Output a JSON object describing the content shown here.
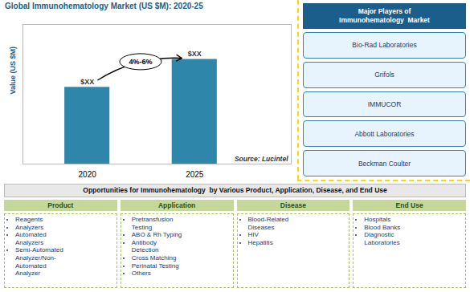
{
  "chart_data": {
    "type": "bar",
    "title": "Global Immunohematology Market (US $M): 2020-25",
    "categories": [
      "2020",
      "2025"
    ],
    "values": [
      55,
      75
    ],
    "value_labels": [
      "$XX",
      "$XX"
    ],
    "data_labels": true,
    "color": "#2E86AB",
    "ylabel": "Value (US $M)",
    "ylim": [
      0,
      100
    ],
    "yticks": [],
    "tick_labels": "x",
    "annotations": [
      "4%-6%",
      "Source: Lucintel"
    ],
    "major_players": {
      "title": "Major Players of\nImmunohematology  Market",
      "items": [
        "Bio-Rad Laboratories",
        "Grifols",
        "IMMUCOR",
        "Abbott Laboratories",
        "Beckman Coulter"
      ]
    },
    "opportunities": {
      "title": "Opportunities for Immunohematology  by Various Product, Application, Disease, and End Use",
      "columns": [
        {
          "name": "Product",
          "items": [
            "Reagents",
            "Analyzers",
            "Automated\nAnalyzers",
            "Semi-Automated\nAnalyzer/Non-\nAutomated\nAnalyzer"
          ]
        },
        {
          "name": "Application",
          "items": [
            "Pretransfusion\nTesting",
            "ABO & Rh Typing",
            "Antibody\nDetection",
            "Cross Matching",
            "Perinatal Testing",
            "Others"
          ]
        },
        {
          "name": "Disease",
          "items": [
            "Blood-Related\nDiseases",
            "HIV",
            "Hepatitis"
          ]
        },
        {
          "name": "End Use",
          "items": [
            "Hospitals",
            "Blood Banks",
            "Diagnostic\nLaboratories"
          ]
        }
      ]
    }
  }
}
